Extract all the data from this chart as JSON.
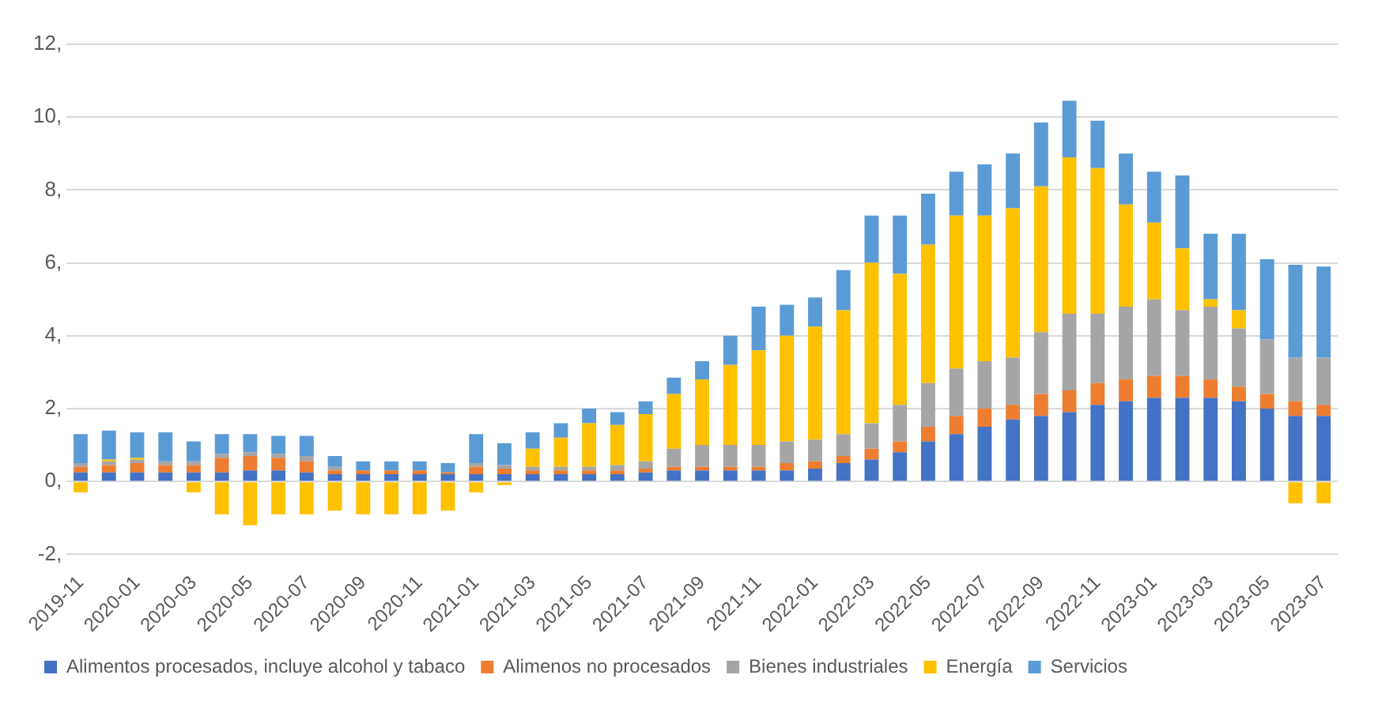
{
  "chart_data": {
    "type": "bar",
    "stacked": true,
    "categories": [
      "2019-11",
      null,
      "2020-01",
      null,
      "2020-03",
      null,
      "2020-05",
      null,
      "2020-07",
      null,
      "2020-09",
      null,
      "2020-11",
      null,
      "2021-01",
      null,
      "2021-03",
      null,
      "2021-05",
      null,
      "2021-07",
      null,
      "2021-09",
      null,
      "2021-11",
      null,
      "2022-01",
      null,
      "2022-03",
      null,
      "2022-05",
      null,
      "2022-07",
      null,
      "2022-09",
      null,
      "2022-11",
      null,
      "2023-01",
      null,
      "2023-03",
      null,
      "2023-05",
      null,
      "2023-07"
    ],
    "series": [
      {
        "name": "Alimentos procesados, incluye alcohol y tabaco",
        "color": "#4472c4",
        "values": [
          0.25,
          0.25,
          0.25,
          0.25,
          0.25,
          0.25,
          0.3,
          0.3,
          0.25,
          0.2,
          0.2,
          0.2,
          0.2,
          0.2,
          0.2,
          0.2,
          0.2,
          0.2,
          0.2,
          0.2,
          0.25,
          0.3,
          0.3,
          0.3,
          0.3,
          0.3,
          0.35,
          0.5,
          0.6,
          0.8,
          1.1,
          1.3,
          1.5,
          1.7,
          1.8,
          1.9,
          2.1,
          2.2,
          2.3,
          2.3,
          2.3,
          2.2,
          2.0,
          1.8,
          1.8
        ]
      },
      {
        "name": "Alimenos no procesados",
        "color": "#ed7d31",
        "values": [
          0.15,
          0.2,
          0.25,
          0.2,
          0.2,
          0.4,
          0.4,
          0.35,
          0.3,
          0.1,
          0.1,
          0.1,
          0.1,
          0.05,
          0.2,
          0.15,
          0.1,
          0.1,
          0.1,
          0.1,
          0.1,
          0.1,
          0.1,
          0.1,
          0.1,
          0.2,
          0.2,
          0.2,
          0.3,
          0.3,
          0.4,
          0.5,
          0.5,
          0.4,
          0.6,
          0.6,
          0.6,
          0.6,
          0.6,
          0.6,
          0.5,
          0.4,
          0.4,
          0.4,
          0.3
        ]
      },
      {
        "name": "Bienes industriales",
        "color": "#a5a5a5",
        "values": [
          0.1,
          0.1,
          0.1,
          0.1,
          0.1,
          0.1,
          0.1,
          0.1,
          0.15,
          0.1,
          null,
          null,
          null,
          null,
          0.1,
          0.1,
          0.1,
          0.1,
          0.1,
          0.15,
          0.2,
          0.5,
          0.6,
          0.6,
          0.6,
          0.6,
          0.6,
          0.6,
          0.7,
          1.0,
          1.2,
          1.3,
          1.3,
          1.3,
          1.7,
          2.1,
          1.9,
          2.0,
          2.1,
          1.8,
          2.0,
          1.6,
          1.5,
          1.2,
          1.3
        ]
      },
      {
        "name": "Energía",
        "color": "#ffc000",
        "values": [
          -0.3,
          0.05,
          0.05,
          0,
          -0.3,
          -0.9,
          -1.2,
          -0.9,
          -0.9,
          -0.8,
          -0.9,
          -0.9,
          -0.9,
          -0.8,
          -0.3,
          -0.1,
          0.5,
          0.8,
          1.2,
          1.1,
          1.3,
          1.5,
          1.8,
          2.2,
          2.6,
          2.9,
          3.1,
          3.4,
          4.4,
          3.6,
          3.8,
          4.2,
          4.0,
          4.1,
          4.0,
          4.3,
          4.0,
          2.8,
          2.1,
          1.7,
          0.2,
          0.5,
          0,
          -0.6,
          -0.6
        ]
      },
      {
        "name": "Servicios",
        "color": "#5b9bd5",
        "values": [
          0.8,
          0.8,
          0.7,
          0.8,
          0.55,
          0.55,
          0.5,
          0.5,
          0.55,
          0.3,
          0.25,
          0.25,
          0.25,
          0.25,
          0.8,
          0.6,
          0.45,
          0.4,
          0.4,
          0.35,
          0.35,
          0.45,
          0.5,
          0.8,
          1.2,
          0.85,
          0.8,
          1.1,
          1.3,
          1.6,
          1.4,
          1.2,
          1.4,
          1.5,
          1.75,
          1.55,
          1.3,
          1.4,
          1.4,
          2.0,
          1.8,
          2.1,
          2.2,
          2.55,
          2.5
        ]
      }
    ],
    "ylim": [
      -2,
      12
    ],
    "yticks": [
      {
        "value": -2,
        "label": "-2,"
      },
      {
        "value": 0,
        "label": "0,"
      },
      {
        "value": 2,
        "label": "2,"
      },
      {
        "value": 4,
        "label": "4,"
      },
      {
        "value": 6,
        "label": "6,"
      },
      {
        "value": 8,
        "label": "8,"
      },
      {
        "value": 10,
        "label": "10,"
      },
      {
        "value": 12,
        "label": "12,"
      }
    ],
    "grid": "y",
    "legend": "bottom"
  }
}
